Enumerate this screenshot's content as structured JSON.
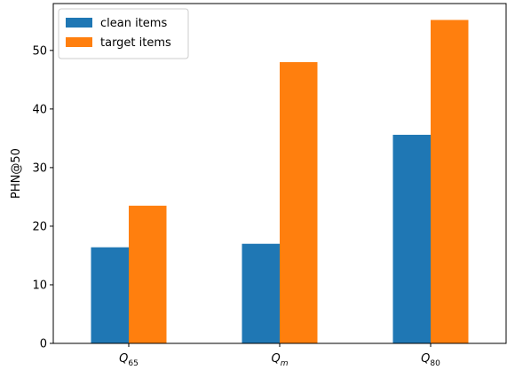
{
  "chart_data": {
    "type": "bar",
    "title": "",
    "xlabel": "",
    "ylabel": "PHN@50",
    "ylim": [
      0,
      58
    ],
    "yticks": [
      0,
      10,
      20,
      30,
      40,
      50
    ],
    "grid": false,
    "legend_position": "top-left",
    "categories": [
      {
        "base": "Q",
        "sub": "65"
      },
      {
        "base": "Q",
        "sub": "m"
      },
      {
        "base": "Q",
        "sub": "80"
      }
    ],
    "series": [
      {
        "name": "clean items",
        "color": "#1f77b4",
        "values": [
          16.4,
          17.0,
          35.6
        ]
      },
      {
        "name": "target items",
        "color": "#ff7f0e",
        "values": [
          23.5,
          48.0,
          55.2
        ]
      }
    ]
  }
}
